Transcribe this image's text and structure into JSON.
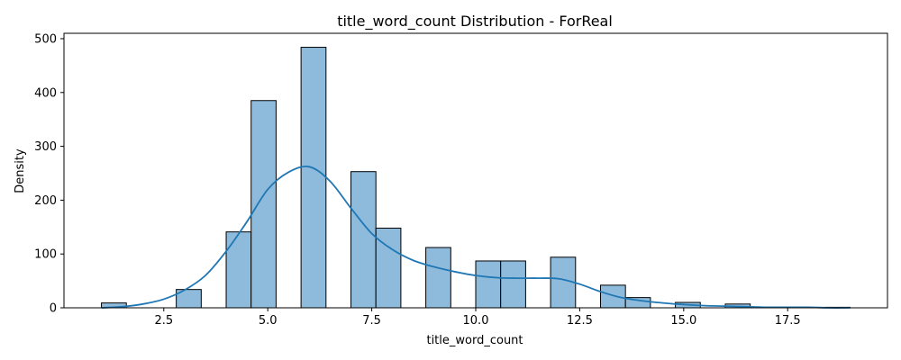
{
  "chart_data": {
    "type": "bar",
    "title": "title_word_count Distribution - ForReal",
    "xlabel": "title_word_count",
    "ylabel": "Density",
    "xlim": [
      0.1,
      19.9
    ],
    "ylim": [
      0,
      510
    ],
    "x_ticks": [
      2.5,
      5.0,
      7.5,
      10.0,
      12.5,
      15.0,
      17.5
    ],
    "x_tick_labels": [
      "2.5",
      "5.0",
      "7.5",
      "10.0",
      "12.5",
      "15.0",
      "17.5"
    ],
    "y_ticks": [
      0,
      100,
      200,
      300,
      400,
      500
    ],
    "y_tick_labels": [
      "0",
      "100",
      "200",
      "300",
      "400",
      "500"
    ],
    "grid": false,
    "colors": {
      "bar_fill": "#8ebbdc",
      "bar_edge": "#000000",
      "kde": "#1f77b4"
    },
    "bins": [
      {
        "x0": 1.0,
        "x1": 1.6,
        "count": 9
      },
      {
        "x0": 1.6,
        "x1": 2.2,
        "count": 0
      },
      {
        "x0": 2.2,
        "x1": 2.8,
        "count": 0
      },
      {
        "x0": 2.8,
        "x1": 3.4,
        "count": 34
      },
      {
        "x0": 3.4,
        "x1": 4.0,
        "count": 0
      },
      {
        "x0": 4.0,
        "x1": 4.6,
        "count": 141
      },
      {
        "x0": 4.6,
        "x1": 5.2,
        "count": 385
      },
      {
        "x0": 5.2,
        "x1": 5.8,
        "count": 0
      },
      {
        "x0": 5.8,
        "x1": 6.4,
        "count": 484
      },
      {
        "x0": 6.4,
        "x1": 7.0,
        "count": 0
      },
      {
        "x0": 7.0,
        "x1": 7.6,
        "count": 253
      },
      {
        "x0": 7.6,
        "x1": 8.2,
        "count": 148
      },
      {
        "x0": 8.2,
        "x1": 8.8,
        "count": 0
      },
      {
        "x0": 8.8,
        "x1": 9.4,
        "count": 112
      },
      {
        "x0": 9.4,
        "x1": 10.0,
        "count": 0
      },
      {
        "x0": 10.0,
        "x1": 10.6,
        "count": 87
      },
      {
        "x0": 10.6,
        "x1": 11.2,
        "count": 87
      },
      {
        "x0": 11.2,
        "x1": 11.8,
        "count": 0
      },
      {
        "x0": 11.8,
        "x1": 12.4,
        "count": 94
      },
      {
        "x0": 12.4,
        "x1": 13.0,
        "count": 0
      },
      {
        "x0": 13.0,
        "x1": 13.6,
        "count": 42
      },
      {
        "x0": 13.6,
        "x1": 14.2,
        "count": 19
      },
      {
        "x0": 14.2,
        "x1": 14.8,
        "count": 0
      },
      {
        "x0": 14.8,
        "x1": 15.4,
        "count": 10
      },
      {
        "x0": 15.4,
        "x1": 16.0,
        "count": 0
      },
      {
        "x0": 16.0,
        "x1": 16.6,
        "count": 7
      },
      {
        "x0": 16.6,
        "x1": 17.2,
        "count": 0
      },
      {
        "x0": 17.2,
        "x1": 17.8,
        "count": 0
      },
      {
        "x0": 17.8,
        "x1": 18.4,
        "count": 0
      },
      {
        "x0": 18.4,
        "x1": 19.0,
        "count": 1
      }
    ],
    "kde": {
      "x": [
        1.0,
        1.5,
        2.0,
        2.5,
        3.0,
        3.5,
        4.0,
        4.5,
        5.0,
        5.5,
        6.0,
        6.5,
        7.0,
        7.5,
        8.0,
        8.5,
        9.0,
        9.5,
        10.0,
        10.5,
        11.0,
        11.5,
        12.0,
        12.5,
        13.0,
        13.5,
        14.0,
        14.5,
        15.0,
        15.5,
        16.0,
        16.5,
        17.0,
        17.5,
        18.0,
        18.5,
        19.0
      ],
      "y": [
        0,
        2,
        7,
        16,
        33,
        60,
        105,
        160,
        220,
        252,
        262,
        235,
        185,
        138,
        108,
        88,
        76,
        67,
        60,
        56,
        55,
        55,
        54,
        44,
        30,
        19,
        13,
        9,
        6,
        4,
        3,
        2,
        1,
        1,
        1,
        0,
        0
      ]
    }
  }
}
